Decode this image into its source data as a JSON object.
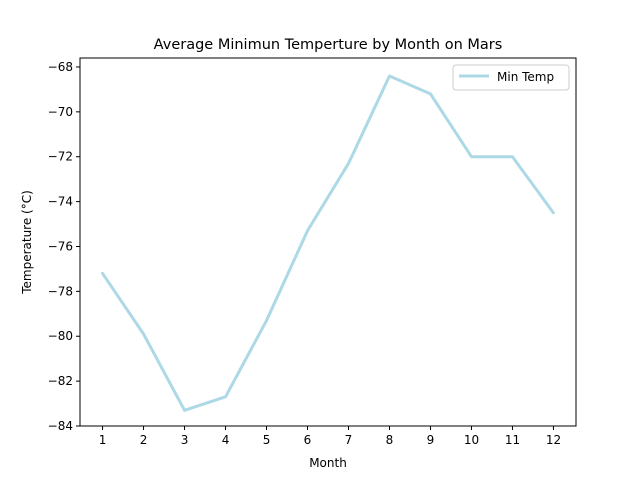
{
  "chart_data": {
    "type": "line",
    "title": "Average Minimun Temperture by Month on Mars",
    "xlabel": "Month",
    "ylabel": "Temperature (°C)",
    "x": [
      1,
      2,
      3,
      4,
      5,
      6,
      7,
      8,
      9,
      10,
      11,
      12
    ],
    "xticks": [
      "1",
      "2",
      "3",
      "4",
      "5",
      "6",
      "7",
      "8",
      "9",
      "10",
      "11",
      "12"
    ],
    "yticks": [
      "−84",
      "−82",
      "−80",
      "−78",
      "−76",
      "−74",
      "−72",
      "−70",
      "−68"
    ],
    "ylim": [
      -84,
      -67.6
    ],
    "xlim": [
      0.45,
      12.55
    ],
    "grid": false,
    "legend_position": "top-right",
    "series": [
      {
        "name": "Min Temp",
        "color": "#add8e6",
        "values": [
          -77.2,
          -79.9,
          -83.3,
          -82.7,
          -79.3,
          -75.3,
          -72.3,
          -68.4,
          -69.2,
          -72.0,
          -72.0,
          -74.5
        ]
      }
    ]
  }
}
